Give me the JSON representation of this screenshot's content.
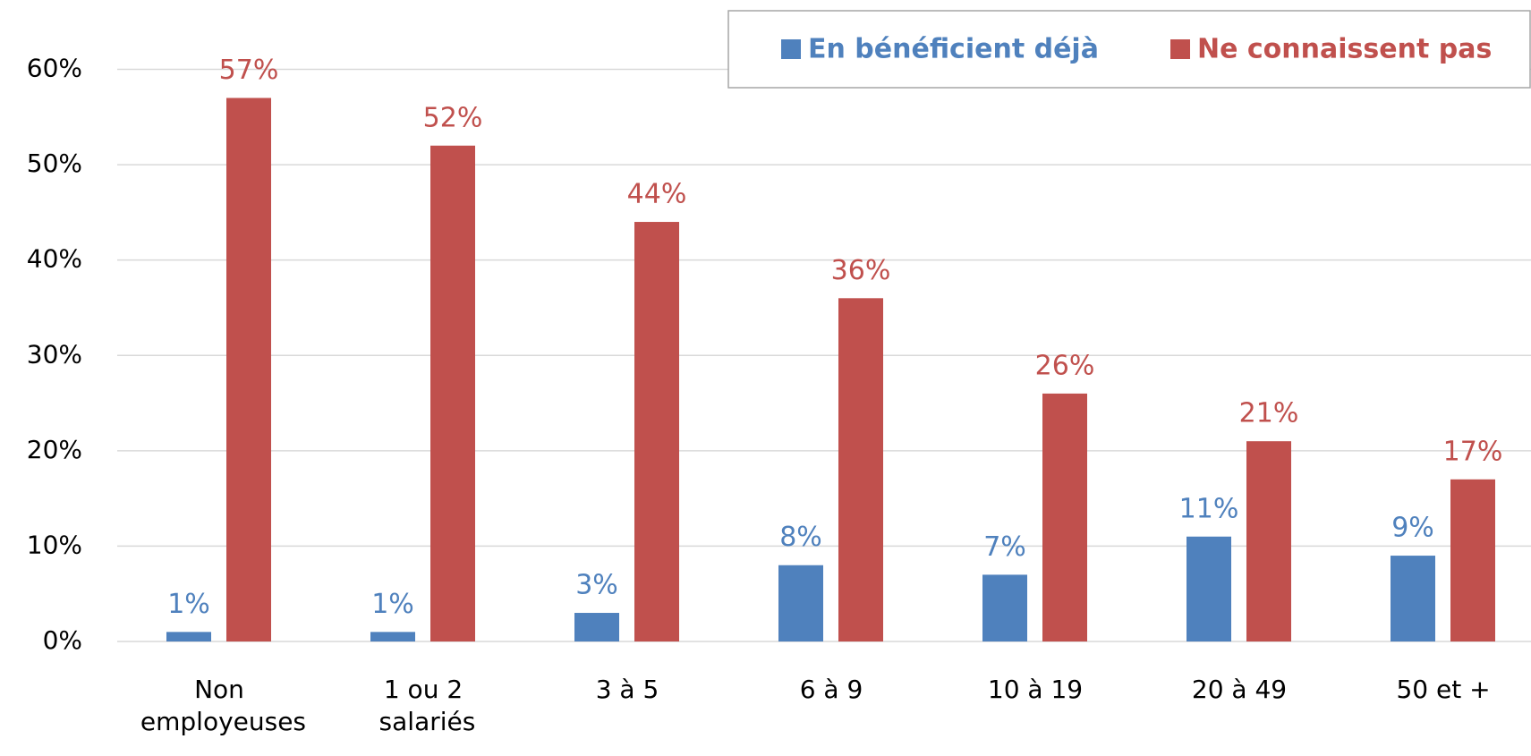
{
  "chart_data": {
    "type": "bar",
    "categories": [
      "Non\nemployeuses",
      "1 ou 2\nsalariés",
      "3 à 5",
      "6 à 9",
      "10 à 19",
      "20 à 49",
      "50 et +"
    ],
    "series": [
      {
        "name": "En bénéficient déjà",
        "color": "#4f81bd",
        "values": [
          1,
          1,
          3,
          8,
          7,
          11,
          9
        ],
        "value_labels": [
          "1%",
          "1%",
          "3%",
          "8%",
          "7%",
          "11%",
          "9%"
        ]
      },
      {
        "name": "Ne connaissent pas",
        "color": "#c0504d",
        "values": [
          57,
          52,
          44,
          36,
          26,
          21,
          17
        ],
        "value_labels": [
          "57%",
          "52%",
          "44%",
          "36%",
          "26%",
          "21%",
          "17%"
        ]
      }
    ],
    "ylim": [
      0,
      60
    ],
    "yticks": [
      {
        "value": 0,
        "label": "0%"
      },
      {
        "value": 10,
        "label": "10%"
      },
      {
        "value": 20,
        "label": "20%"
      },
      {
        "value": 30,
        "label": "30%"
      },
      {
        "value": 40,
        "label": "40%"
      },
      {
        "value": 50,
        "label": "50%"
      },
      {
        "value": 60,
        "label": "60%"
      }
    ],
    "grid": true,
    "legend": "top-right"
  }
}
